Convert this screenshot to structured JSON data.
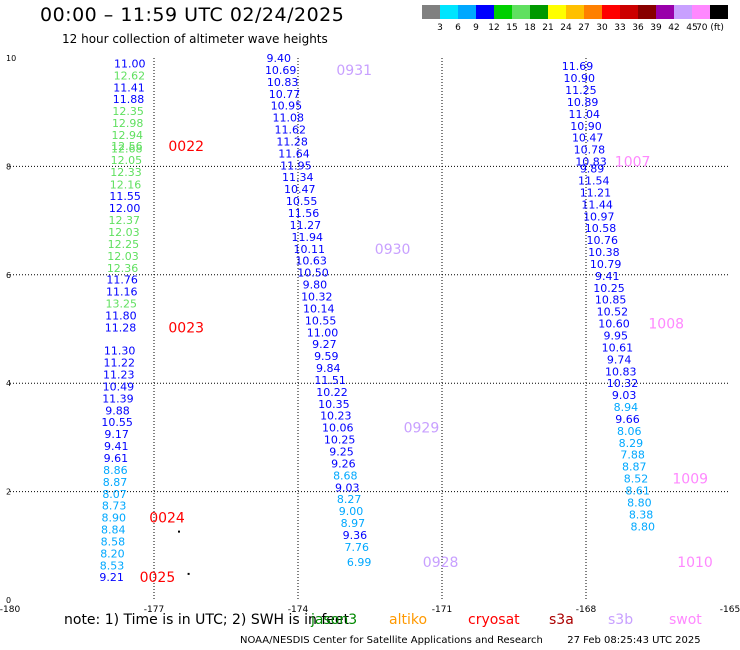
{
  "header": {
    "title": "00:00 – 11:59 UTC 02/24/2025",
    "subtitle": "12 hour collection of altimeter wave heights"
  },
  "colorbar": {
    "ticks": [
      "3",
      "6",
      "9",
      "12",
      "15",
      "18",
      "21",
      "24",
      "27",
      "30",
      "33",
      "36",
      "39",
      "42",
      "45",
      "70 (ft)"
    ],
    "colors": [
      "#808080",
      "#00e5ff",
      "#00a8ff",
      "#0000ff",
      "#00d000",
      "#60e060",
      "#009900",
      "#ffff00",
      "#ffc000",
      "#ff8000",
      "#ff0000",
      "#cc0000",
      "#880000",
      "#9900aa",
      "#c8a0ff",
      "#ff88ff",
      "#000000"
    ]
  },
  "chart_data": {
    "type": "scatter",
    "title": "00:00 – 11:59 UTC 02/24/2025",
    "subtitle": "12 hour collection of altimeter wave heights",
    "xlim": [
      -180,
      -165
    ],
    "ylim": [
      0,
      10
    ],
    "x_ticks": [
      "-180",
      "-177",
      "-174",
      "-171",
      "-168",
      "-165"
    ],
    "y_ticks": [
      "0",
      "2",
      "4",
      "6",
      "8",
      "10"
    ],
    "grid": true,
    "tracks": [
      {
        "x_top": -177.5,
        "x_bottom": -177.9,
        "points": [
          {
            "v": "11.00",
            "y": 9.9,
            "c": "#0000ff"
          },
          {
            "v": "12.62",
            "y": 9.68,
            "c": "#60e060"
          },
          {
            "v": "11.41",
            "y": 9.46,
            "c": "#0000ff"
          },
          {
            "v": "11.88",
            "y": 9.24,
            "c": "#0000ff"
          },
          {
            "v": "12.35",
            "y": 9.02,
            "c": "#60e060"
          },
          {
            "v": "12.98",
            "y": 8.8,
            "c": "#60e060"
          },
          {
            "v": "12.94",
            "y": 8.58,
            "c": "#60e060"
          },
          {
            "v": "12.56",
            "y": 8.38,
            "c": "#60e060"
          },
          {
            "v": "12.68",
            "y": 8.33,
            "c": "#60e060"
          },
          {
            "v": "12.05",
            "y": 8.12,
            "c": "#60e060"
          },
          {
            "v": "12.33",
            "y": 7.9,
            "c": "#60e060"
          },
          {
            "v": "12.16",
            "y": 7.67,
            "c": "#60e060"
          },
          {
            "v": "11.55",
            "y": 7.45,
            "c": "#0000ff"
          },
          {
            "v": "12.00",
            "y": 7.23,
            "c": "#0000ff"
          },
          {
            "v": "12.37",
            "y": 7.01,
            "c": "#60e060"
          },
          {
            "v": "12.03",
            "y": 6.79,
            "c": "#60e060"
          },
          {
            "v": "12.25",
            "y": 6.57,
            "c": "#60e060"
          },
          {
            "v": "12.03",
            "y": 6.35,
            "c": "#60e060"
          },
          {
            "v": "12.36",
            "y": 6.13,
            "c": "#60e060"
          },
          {
            "v": "11.76",
            "y": 5.91,
            "c": "#0000ff"
          },
          {
            "v": "11.16",
            "y": 5.69,
            "c": "#0000ff"
          },
          {
            "v": "13.25",
            "y": 5.47,
            "c": "#60e060"
          },
          {
            "v": "11.80",
            "y": 5.25,
            "c": "#0000ff"
          },
          {
            "v": "11.28",
            "y": 5.03,
            "c": "#0000ff"
          },
          {
            "v": "11.30",
            "y": 4.6,
            "c": "#0000ff"
          },
          {
            "v": "11.22",
            "y": 4.38,
            "c": "#0000ff"
          },
          {
            "v": "11.23",
            "y": 4.16,
            "c": "#0000ff"
          },
          {
            "v": "10.49",
            "y": 3.94,
            "c": "#0000ff"
          },
          {
            "v": "11.39",
            "y": 3.72,
            "c": "#0000ff"
          },
          {
            "v": "9.88",
            "y": 3.5,
            "c": "#0000ff"
          },
          {
            "v": "10.55",
            "y": 3.28,
            "c": "#0000ff"
          },
          {
            "v": "9.17",
            "y": 3.06,
            "c": "#0000ff"
          },
          {
            "v": "9.41",
            "y": 2.84,
            "c": "#0000ff"
          },
          {
            "v": "9.61",
            "y": 2.62,
            "c": "#0000ff"
          },
          {
            "v": "8.86",
            "y": 2.4,
            "c": "#00a8ff"
          },
          {
            "v": "8.87",
            "y": 2.18,
            "c": "#00a8ff"
          },
          {
            "v": "8.07",
            "y": 1.96,
            "c": "#00a8ff"
          },
          {
            "v": "8.73",
            "y": 1.74,
            "c": "#00a8ff"
          },
          {
            "v": "8.90",
            "y": 1.52,
            "c": "#00a8ff"
          },
          {
            "v": "8.84",
            "y": 1.3,
            "c": "#00a8ff"
          },
          {
            "v": "8.58",
            "y": 1.08,
            "c": "#00a8ff"
          },
          {
            "v": "8.20",
            "y": 0.86,
            "c": "#00a8ff"
          },
          {
            "v": "8.53",
            "y": 0.64,
            "c": "#00a8ff"
          },
          {
            "v": "9.21",
            "y": 0.42,
            "c": "#0000ff"
          }
        ]
      },
      {
        "x_top": -174.4,
        "x_bottom": -172.6,
        "points": [
          {
            "v": "9.40",
            "y": 10.0,
            "c": "#0000ff"
          },
          {
            "v": "10.69",
            "y": 9.78,
            "c": "#0000ff"
          },
          {
            "v": "10.83",
            "y": 9.56,
            "c": "#0000ff"
          },
          {
            "v": "10.77",
            "y": 9.34,
            "c": "#0000ff"
          },
          {
            "v": "10.95",
            "y": 9.12,
            "c": "#0000ff"
          },
          {
            "v": "11.08",
            "y": 8.9,
            "c": "#0000ff"
          },
          {
            "v": "11.62",
            "y": 8.68,
            "c": "#0000ff"
          },
          {
            "v": "11.28",
            "y": 8.46,
            "c": "#0000ff"
          },
          {
            "v": "11.64",
            "y": 8.24,
            "c": "#0000ff"
          },
          {
            "v": "11.95",
            "y": 8.02,
            "c": "#0000ff"
          },
          {
            "v": "11.34",
            "y": 7.8,
            "c": "#0000ff"
          },
          {
            "v": "10.47",
            "y": 7.58,
            "c": "#0000ff"
          },
          {
            "v": "10.55",
            "y": 7.36,
            "c": "#0000ff"
          },
          {
            "v": "11.56",
            "y": 7.14,
            "c": "#0000ff"
          },
          {
            "v": "11.27",
            "y": 6.92,
            "c": "#0000ff"
          },
          {
            "v": "11.94",
            "y": 6.7,
            "c": "#0000ff"
          },
          {
            "v": "10.11",
            "y": 6.48,
            "c": "#0000ff"
          },
          {
            "v": "10.63",
            "y": 6.26,
            "c": "#0000ff"
          },
          {
            "v": "10.50",
            "y": 6.04,
            "c": "#0000ff"
          },
          {
            "v": "9.80",
            "y": 5.82,
            "c": "#0000ff"
          },
          {
            "v": "10.32",
            "y": 5.6,
            "c": "#0000ff"
          },
          {
            "v": "10.14",
            "y": 5.38,
            "c": "#0000ff"
          },
          {
            "v": "10.55",
            "y": 5.16,
            "c": "#0000ff"
          },
          {
            "v": "11.00",
            "y": 4.94,
            "c": "#0000ff"
          },
          {
            "v": "9.27",
            "y": 4.72,
            "c": "#0000ff"
          },
          {
            "v": "9.59",
            "y": 4.5,
            "c": "#0000ff"
          },
          {
            "v": "9.84",
            "y": 4.28,
            "c": "#0000ff"
          },
          {
            "v": "11.51",
            "y": 4.06,
            "c": "#0000ff"
          },
          {
            "v": "10.22",
            "y": 3.84,
            "c": "#0000ff"
          },
          {
            "v": "10.35",
            "y": 3.62,
            "c": "#0000ff"
          },
          {
            "v": "10.23",
            "y": 3.4,
            "c": "#0000ff"
          },
          {
            "v": "10.06",
            "y": 3.18,
            "c": "#0000ff"
          },
          {
            "v": "10.25",
            "y": 2.96,
            "c": "#0000ff"
          },
          {
            "v": "9.25",
            "y": 2.74,
            "c": "#0000ff"
          },
          {
            "v": "9.26",
            "y": 2.52,
            "c": "#0000ff"
          },
          {
            "v": "8.68",
            "y": 2.3,
            "c": "#00a8ff"
          },
          {
            "v": "9.03",
            "y": 2.08,
            "c": "#0000ff"
          },
          {
            "v": "8.27",
            "y": 1.86,
            "c": "#00a8ff"
          },
          {
            "v": "9.00",
            "y": 1.64,
            "c": "#00a8ff"
          },
          {
            "v": "8.97",
            "y": 1.42,
            "c": "#00a8ff"
          },
          {
            "v": "9.36",
            "y": 1.2,
            "c": "#0000ff"
          },
          {
            "v": "7.76",
            "y": 0.98,
            "c": "#00a8ff"
          },
          {
            "v": "6.99",
            "y": 0.7,
            "c": "#00a8ff"
          }
        ]
      },
      {
        "x_top": -168.2,
        "x_bottom": -166.6,
        "points": [
          {
            "v": "11.69",
            "y": 9.85,
            "c": "#0000ff"
          },
          {
            "v": "10.90",
            "y": 9.63,
            "c": "#0000ff"
          },
          {
            "v": "11.25",
            "y": 9.41,
            "c": "#0000ff"
          },
          {
            "v": "10.89",
            "y": 9.19,
            "c": "#0000ff"
          },
          {
            "v": "11.04",
            "y": 8.97,
            "c": "#0000ff"
          },
          {
            "v": "10.90",
            "y": 8.75,
            "c": "#0000ff"
          },
          {
            "v": "10.47",
            "y": 8.53,
            "c": "#0000ff"
          },
          {
            "v": "10.78",
            "y": 8.31,
            "c": "#0000ff"
          },
          {
            "v": "10.83",
            "y": 8.09,
            "c": "#0000ff"
          },
          {
            "v": "9.89",
            "y": 7.96,
            "c": "#0000ff"
          },
          {
            "v": "11.54",
            "y": 7.74,
            "c": "#0000ff"
          },
          {
            "v": "11.21",
            "y": 7.52,
            "c": "#0000ff"
          },
          {
            "v": "11.44",
            "y": 7.3,
            "c": "#0000ff"
          },
          {
            "v": "10.97",
            "y": 7.08,
            "c": "#0000ff"
          },
          {
            "v": "10.58",
            "y": 6.86,
            "c": "#0000ff"
          },
          {
            "v": "10.76",
            "y": 6.64,
            "c": "#0000ff"
          },
          {
            "v": "10.38",
            "y": 6.42,
            "c": "#0000ff"
          },
          {
            "v": "10.79",
            "y": 6.2,
            "c": "#0000ff"
          },
          {
            "v": "9.41",
            "y": 5.98,
            "c": "#0000ff"
          },
          {
            "v": "10.25",
            "y": 5.76,
            "c": "#0000ff"
          },
          {
            "v": "10.85",
            "y": 5.54,
            "c": "#0000ff"
          },
          {
            "v": "10.52",
            "y": 5.32,
            "c": "#0000ff"
          },
          {
            "v": "10.60",
            "y": 5.1,
            "c": "#0000ff"
          },
          {
            "v": "9.95",
            "y": 4.88,
            "c": "#0000ff"
          },
          {
            "v": "10.61",
            "y": 4.66,
            "c": "#0000ff"
          },
          {
            "v": "9.74",
            "y": 4.44,
            "c": "#0000ff"
          },
          {
            "v": "10.83",
            "y": 4.22,
            "c": "#0000ff"
          },
          {
            "v": "10.32",
            "y": 4.0,
            "c": "#0000ff"
          },
          {
            "v": "9.03",
            "y": 3.78,
            "c": "#0000ff"
          },
          {
            "v": "8.94",
            "y": 3.56,
            "c": "#00a8ff"
          },
          {
            "v": "9.66",
            "y": 3.34,
            "c": "#0000ff"
          },
          {
            "v": "8.06",
            "y": 3.12,
            "c": "#00a8ff"
          },
          {
            "v": "8.29",
            "y": 2.9,
            "c": "#00a8ff"
          },
          {
            "v": "7.88",
            "y": 2.68,
            "c": "#00a8ff"
          },
          {
            "v": "8.87",
            "y": 2.46,
            "c": "#00a8ff"
          },
          {
            "v": "8.52",
            "y": 2.24,
            "c": "#00a8ff"
          },
          {
            "v": "8.61",
            "y": 2.02,
            "c": "#00a8ff"
          },
          {
            "v": "8.80",
            "y": 1.8,
            "c": "#00a8ff"
          },
          {
            "v": "8.38",
            "y": 1.58,
            "c": "#00a8ff"
          },
          {
            "v": "8.80",
            "y": 1.36,
            "c": "#00a8ff"
          }
        ]
      }
    ],
    "time_labels": [
      {
        "t": "0022",
        "x": -176.7,
        "y": 8.38,
        "c": "#ff0000"
      },
      {
        "t": "0023",
        "x": -176.7,
        "y": 5.03,
        "c": "#ff0000"
      },
      {
        "t": "0024",
        "x": -177.1,
        "y": 1.52,
        "c": "#ff0000"
      },
      {
        "t": "0025",
        "x": -177.3,
        "y": 0.42,
        "c": "#ff0000"
      },
      {
        "t": "0931",
        "x": -173.2,
        "y": 9.78,
        "c": "#c8a0ff"
      },
      {
        "t": "0930",
        "x": -172.4,
        "y": 6.48,
        "c": "#c8a0ff"
      },
      {
        "t": "0929",
        "x": -171.8,
        "y": 3.18,
        "c": "#c8a0ff"
      },
      {
        "t": "0928",
        "x": -171.4,
        "y": 0.7,
        "c": "#c8a0ff"
      },
      {
        "t": "1007",
        "x": -167.4,
        "y": 8.09,
        "c": "#ff88ff"
      },
      {
        "t": "1008",
        "x": -166.7,
        "y": 5.1,
        "c": "#ff88ff"
      },
      {
        "t": "1009",
        "x": -166.2,
        "y": 2.24,
        "c": "#ff88ff"
      },
      {
        "t": "1010",
        "x": -166.1,
        "y": 0.7,
        "c": "#ff88ff"
      }
    ],
    "dots": [
      {
        "x": -176.5,
        "y": 1.28
      },
      {
        "x": -176.3,
        "y": 0.5
      }
    ]
  },
  "note": {
    "prefix": "note:  1) Time is in UTC;  2) SWH is in feet",
    "sats": [
      {
        "name": "jason3",
        "color": "#008800"
      },
      {
        "name": "altiko",
        "color": "#ff9900"
      },
      {
        "name": "cryosat",
        "color": "#ff0000"
      },
      {
        "name": "s3a",
        "color": "#aa0000"
      },
      {
        "name": "s3b",
        "color": "#c8a0ff"
      },
      {
        "name": "swot",
        "color": "#ff88ff"
      }
    ]
  },
  "footer": {
    "credit": "NOAA/NESDIS Center for Satellite Applications and Research",
    "timestamp": "27 Feb 08:25:43 UTC 2025"
  }
}
